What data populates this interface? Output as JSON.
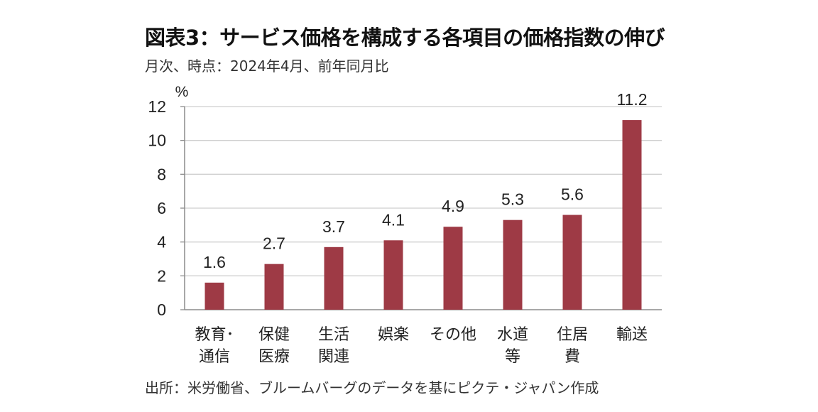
{
  "title": "図表3：サービス価格を構成する各項目の価格指数の伸び",
  "subtitle": "月次、時点：2024年4月、前年同月比",
  "source": "出所：米労働省、ブルームバーグのデータを基にピクテ・ジャパン作成",
  "colors": {
    "bar": "#9e3a45",
    "grid": "#cfcfcf",
    "axis": "#8c8c8c",
    "text": "#222222"
  },
  "chart_data": {
    "type": "bar",
    "unit_label": "%",
    "categories": [
      [
        "教育･",
        "通信"
      ],
      [
        "保健",
        "医療"
      ],
      [
        "生活",
        "関連"
      ],
      [
        "娯楽"
      ],
      [
        "その他"
      ],
      [
        "水道",
        "等"
      ],
      [
        "住居",
        "費"
      ],
      [
        "輸送"
      ]
    ],
    "values": [
      1.6,
      2.7,
      3.7,
      4.1,
      4.9,
      5.3,
      5.6,
      11.2
    ],
    "data_labels": [
      "1.6",
      "2.7",
      "3.7",
      "4.1",
      "4.9",
      "5.3",
      "5.6",
      "11.2"
    ],
    "ylim": [
      0,
      12
    ],
    "yticks": [
      0,
      2,
      4,
      6,
      8,
      10,
      12
    ],
    "grid": true,
    "legend": "none"
  }
}
